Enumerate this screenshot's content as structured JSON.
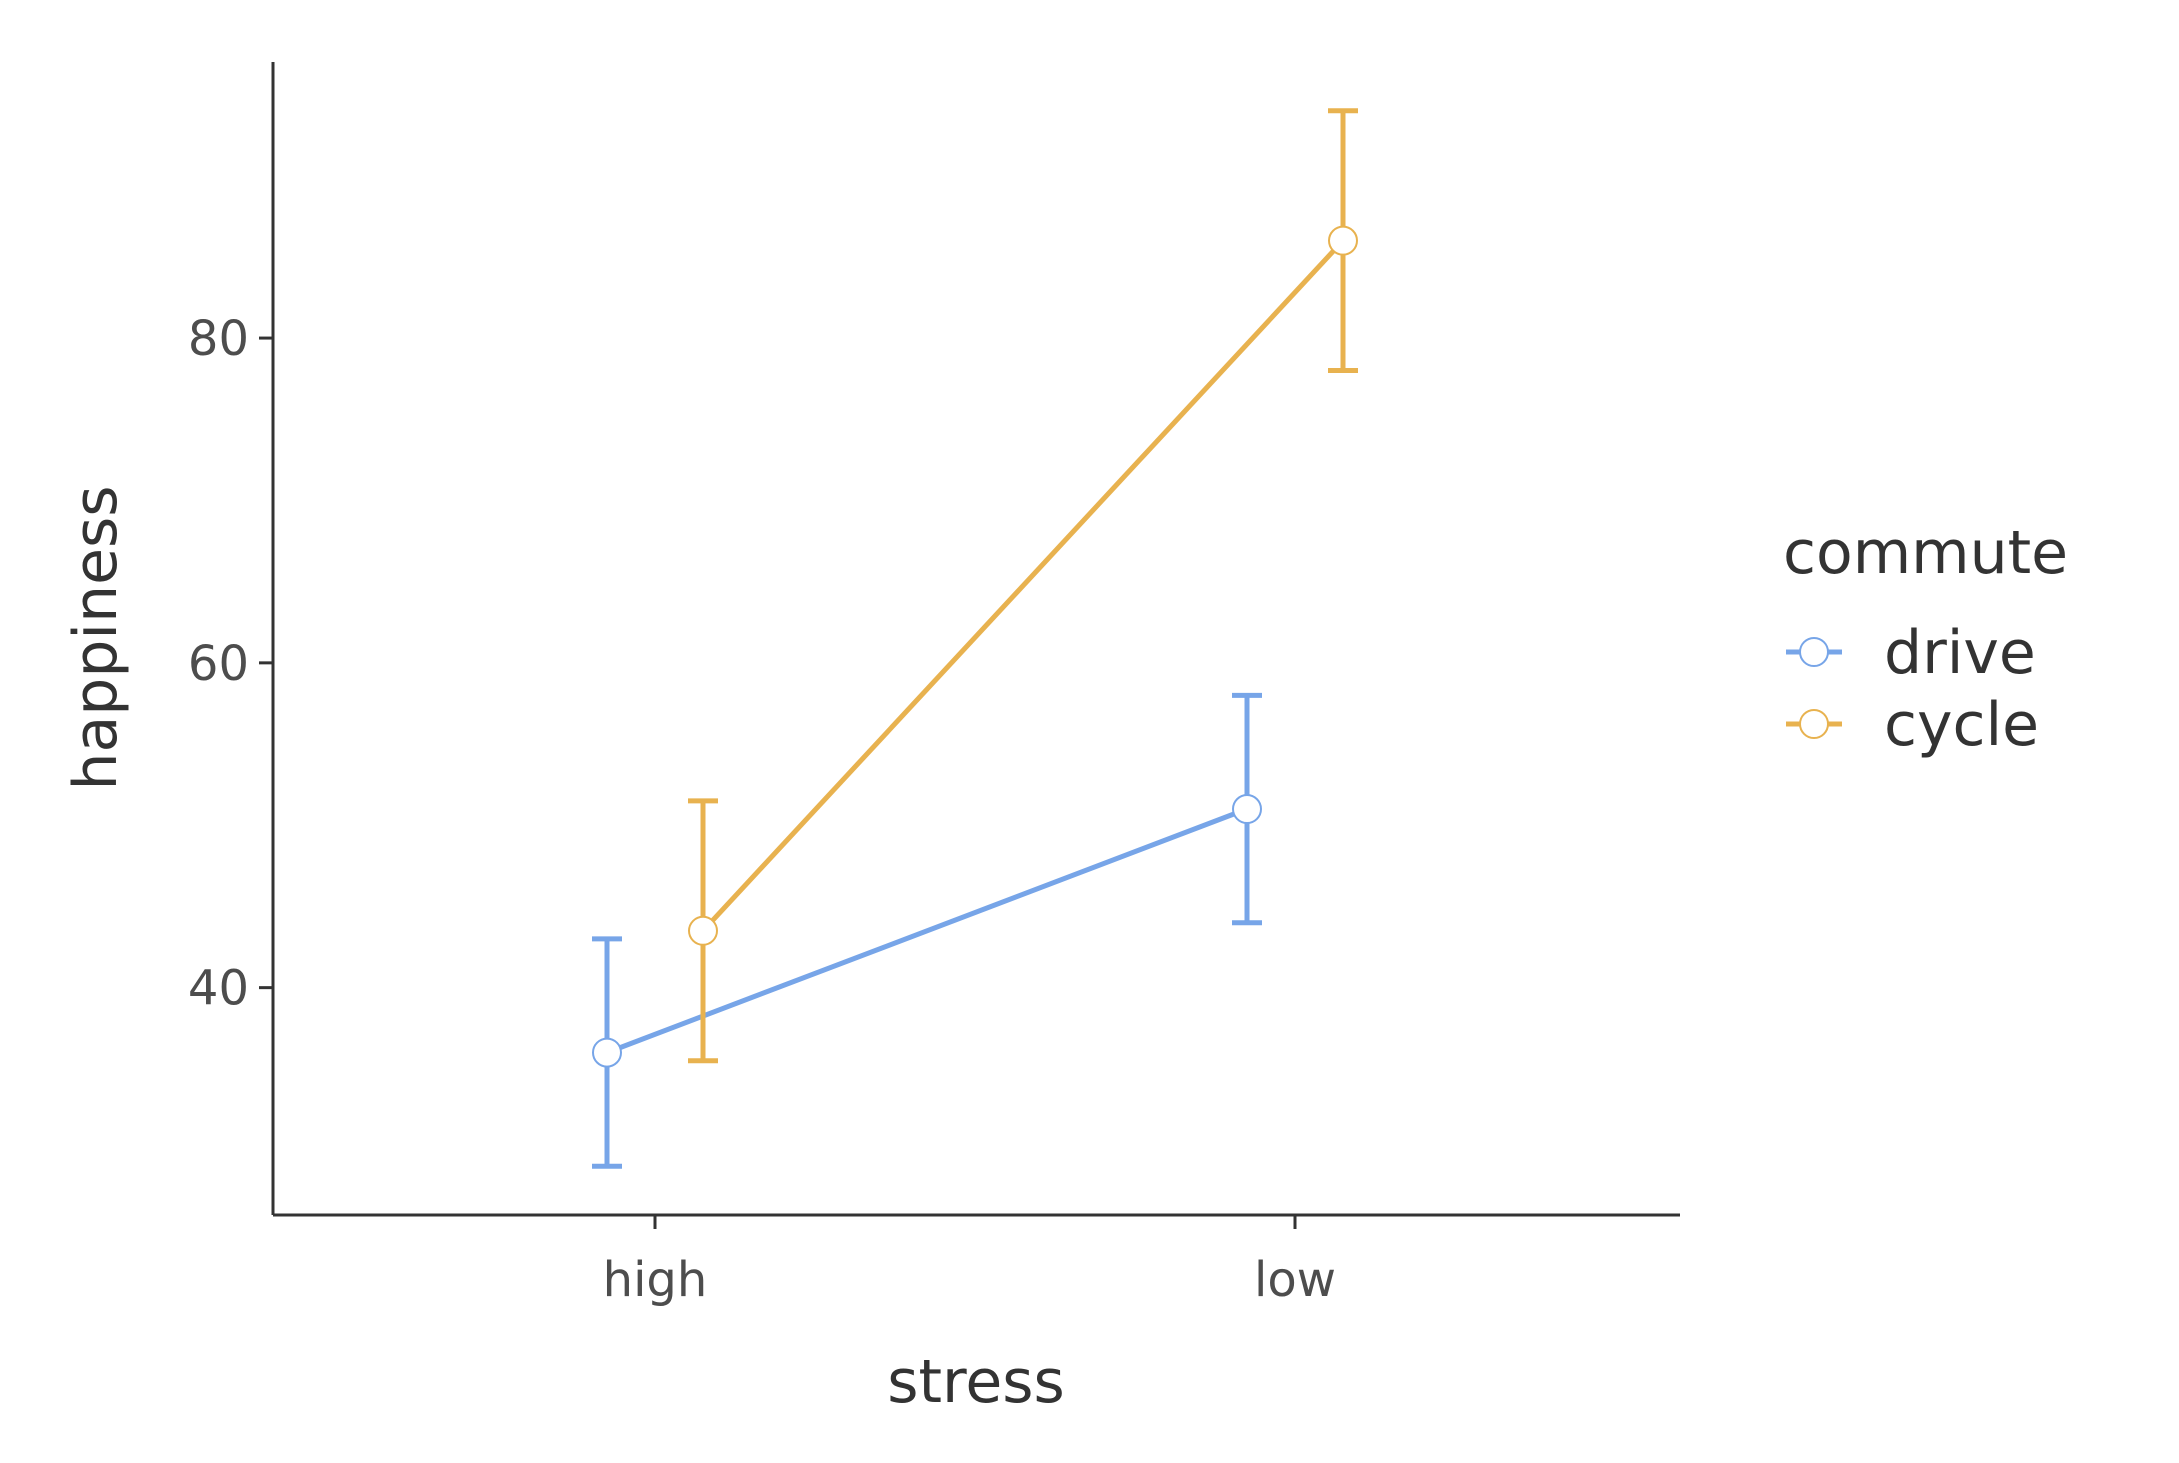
{
  "chart_data": {
    "type": "line",
    "xlabel": "stress",
    "ylabel": "happiness",
    "categories": [
      "high",
      "low"
    ],
    "ylim": [
      26,
      97
    ],
    "yticks": [
      40,
      60,
      80
    ],
    "grid": false,
    "legend": {
      "title": "commute",
      "position": "right"
    },
    "series": [
      {
        "name": "drive",
        "color": "#77a5e8",
        "values": [
          36,
          51
        ],
        "error_low": [
          29,
          44
        ],
        "error_high": [
          43,
          58
        ]
      },
      {
        "name": "cycle",
        "color": "#e8b24f",
        "values": [
          43.5,
          86
        ],
        "error_low": [
          35.5,
          78
        ],
        "error_high": [
          51.5,
          94
        ]
      }
    ]
  }
}
